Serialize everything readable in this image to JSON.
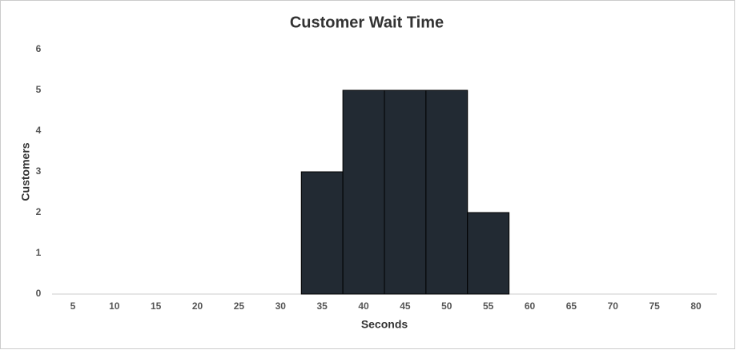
{
  "chart_data": {
    "type": "histogram",
    "title": "Customer Wait Time",
    "x_label": "Seconds",
    "y_label": "Customers",
    "bins": [
      32.5,
      37.5,
      42.5,
      47.5,
      52.5,
      57.5
    ],
    "values": [
      3,
      5,
      5,
      5,
      2
    ],
    "color": "#222a33",
    "xlim": [
      2.5,
      82.5
    ],
    "xticks": [
      5,
      10,
      15,
      20,
      25,
      30,
      35,
      40,
      45,
      50,
      55,
      60,
      65,
      70,
      75,
      80
    ],
    "ylim": [
      0,
      6
    ],
    "yticks": [
      0,
      1,
      2,
      3,
      4,
      5,
      6
    ],
    "grid": false
  }
}
